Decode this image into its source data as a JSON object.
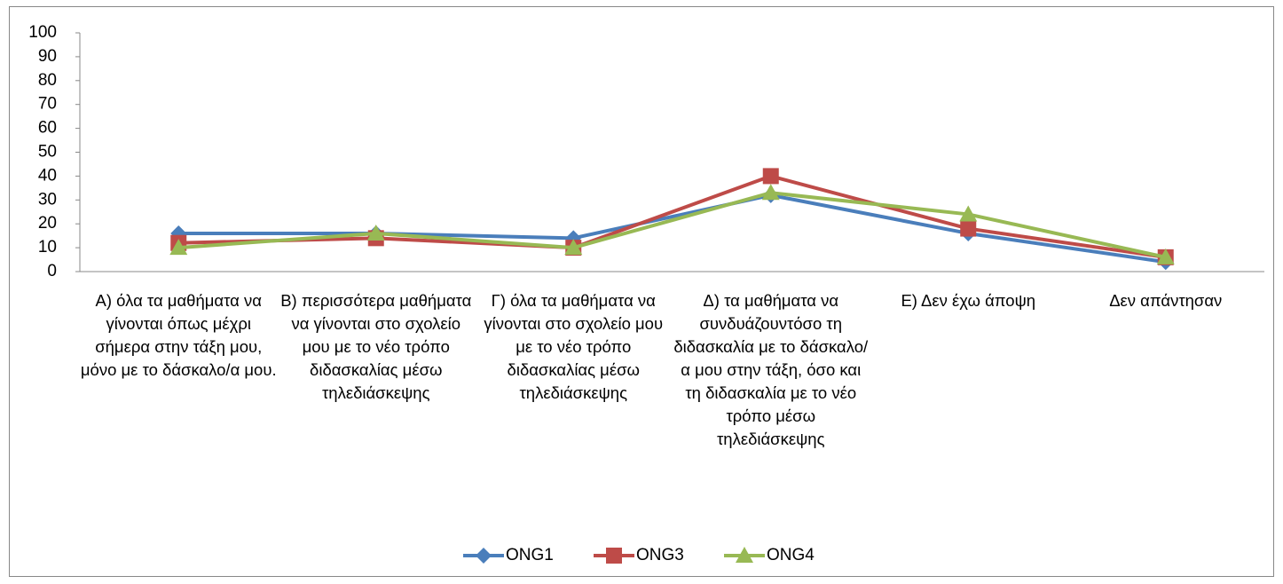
{
  "chart_data": {
    "type": "line",
    "categories": [
      "Α) όλα τα μαθήματα να γίνονται όπως μέχρι σήμερα στην τάξη μου, μόνο με το δάσκαλο/α μου.",
      "Β) περισσότερα μαθήματα να γίνονται στο σχολείο μου με το νέο τρόπο διδασκαλίας μέσω τηλεδιάσκεψης",
      "Γ) όλα τα μαθήματα να γίνονται στο σχολείο μου με το νέο τρόπο διδασκαλίας μέσω τηλεδιάσκεψης",
      "Δ) τα μαθήματα να συνδυάζουντόσο τη διδασκαλία με το δάσκαλο/α μου στην τάξη, όσο και τη διδασκαλία με το νέο τρόπο μέσω τηλεδιάσκεψης",
      "Ε) Δεν έχω άποψη",
      "Δεν απάντησαν"
    ],
    "series": [
      {
        "name": "ONG1",
        "color": "#4a7ebb",
        "marker": "diamond",
        "values": [
          16,
          16,
          14,
          32,
          16,
          4
        ]
      },
      {
        "name": "ONG3",
        "color": "#be4b48",
        "marker": "square",
        "values": [
          12,
          14,
          10,
          40,
          18,
          6
        ]
      },
      {
        "name": "ONG4",
        "color": "#98b954",
        "marker": "triangle",
        "values": [
          10,
          16,
          10,
          33,
          24,
          6
        ]
      }
    ],
    "ylim": [
      0,
      100
    ],
    "yticks": [
      0,
      10,
      20,
      30,
      40,
      50,
      60,
      70,
      80,
      90,
      100
    ],
    "grid": false,
    "legend": "bottom"
  }
}
